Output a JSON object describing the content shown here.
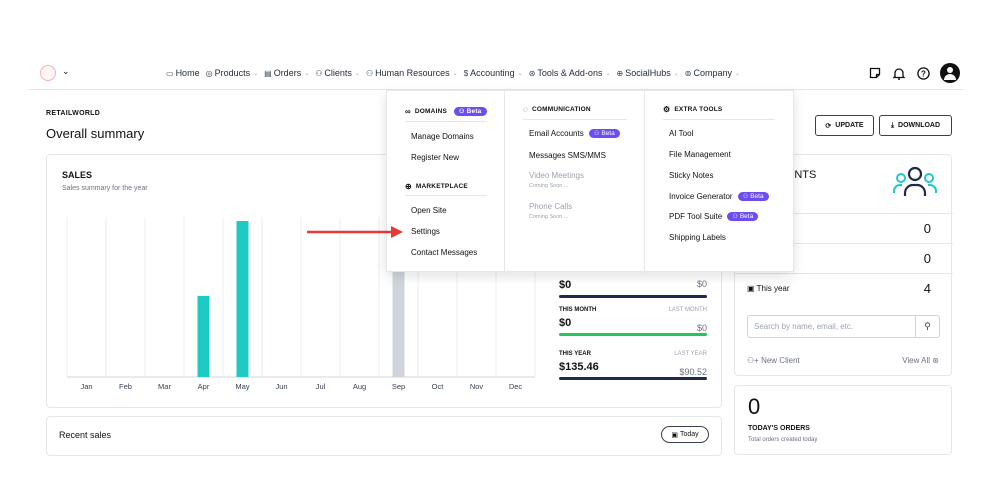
{
  "nav": {
    "items": [
      {
        "icon": "▭",
        "label": "Home",
        "chevron": false
      },
      {
        "icon": "◎",
        "label": "Products",
        "chevron": true
      },
      {
        "icon": "▤",
        "label": "Orders",
        "chevron": true
      },
      {
        "icon": "⚇",
        "label": "Clients",
        "chevron": true
      },
      {
        "icon": "⚇",
        "label": "Human Resources",
        "chevron": true
      },
      {
        "icon": "$",
        "label": "Accounting",
        "chevron": true
      },
      {
        "icon": "⊛",
        "label": "Tools & Add-ons",
        "chevron": true
      },
      {
        "icon": "⊕",
        "label": "SocialHubs",
        "chevron": true
      },
      {
        "icon": "⊚",
        "label": "Company",
        "chevron": true
      }
    ]
  },
  "header": {
    "org": "RETAILWORLD",
    "title": "Overall summary",
    "update_label": "UPDATE",
    "download_label": "DOWNLOAD"
  },
  "sales": {
    "title": "SALES",
    "subtitle": "Sales summary for the year"
  },
  "chart_data": {
    "type": "bar",
    "title": "SALES",
    "categories": [
      "Jan",
      "Feb",
      "Mar",
      "Apr",
      "May",
      "Jun",
      "Jul",
      "Aug",
      "Sep",
      "Oct",
      "Nov",
      "Dec"
    ],
    "values": [
      0,
      0,
      0,
      52,
      100,
      0,
      0,
      0,
      77,
      0,
      0,
      0
    ],
    "colors": [
      "#1ecbc4",
      "#1ecbc4",
      "#1ecbc4",
      "#1ecbc4",
      "#1ecbc4",
      "#1ecbc4",
      "#1ecbc4",
      "#1ecbc4",
      "#d1d5db",
      "#1ecbc4",
      "#1ecbc4",
      "#1ecbc4"
    ],
    "ylim": [
      0,
      100
    ],
    "grid": true
  },
  "summary": {
    "today": {
      "value": "$0",
      "last": "$0",
      "color": "#1e2a4a"
    },
    "month": {
      "label": "THIS MONTH",
      "last_label": "LAST MONTH",
      "value": "$0",
      "last": "$0",
      "color": "#22c55e"
    },
    "year": {
      "label": "THIS YEAR",
      "last_label": "LAST YEAR",
      "value": "$135.46",
      "last": "$90.52",
      "color": "#1e2a4a"
    }
  },
  "clients": {
    "title_fragment": "ENTS",
    "sub_fragment": "y",
    "rows": [
      {
        "label": ":",
        "value": "0"
      },
      {
        "label": "th",
        "value": "0"
      },
      {
        "label": "This year",
        "value": "4"
      }
    ],
    "search_placeholder": "Search by name, email, etc.",
    "new_client": "New Client",
    "view_all": "View All"
  },
  "orders": {
    "count": "0",
    "title": "TODAY'S ORDERS",
    "subtitle": "Total orders created today"
  },
  "recent": {
    "title": "Recent sales",
    "filter": "Today"
  },
  "dropdown": {
    "domains": {
      "heading": "DOMAINS",
      "beta": "Beta",
      "items": [
        "Manage Domains",
        "Register New"
      ]
    },
    "marketplace": {
      "heading": "MARKETPLACE",
      "items": [
        "Open Site",
        "Settings",
        "Contact Messages"
      ]
    },
    "communication": {
      "heading": "COMMUNICATION",
      "email": "Email Accounts",
      "beta": "Beta",
      "messages": "Messages SMS/MMS",
      "video": "Video Meetings",
      "video_soon": "Coming Soon ...",
      "phone": "Phone Calls",
      "phone_soon": "Coming Soon ..."
    },
    "extra": {
      "heading": "EXTRA TOOLS",
      "ai": "AI Tool",
      "files": "File Management",
      "notes": "Sticky Notes",
      "invoice": "Invoice Generator",
      "pdf": "PDF Tool Suite",
      "beta": "Beta",
      "shipping": "Shipping Labels"
    }
  },
  "colors": {
    "accent": "#6d4df2",
    "bar": "#1ecbc4",
    "arrow": "#e53935"
  }
}
